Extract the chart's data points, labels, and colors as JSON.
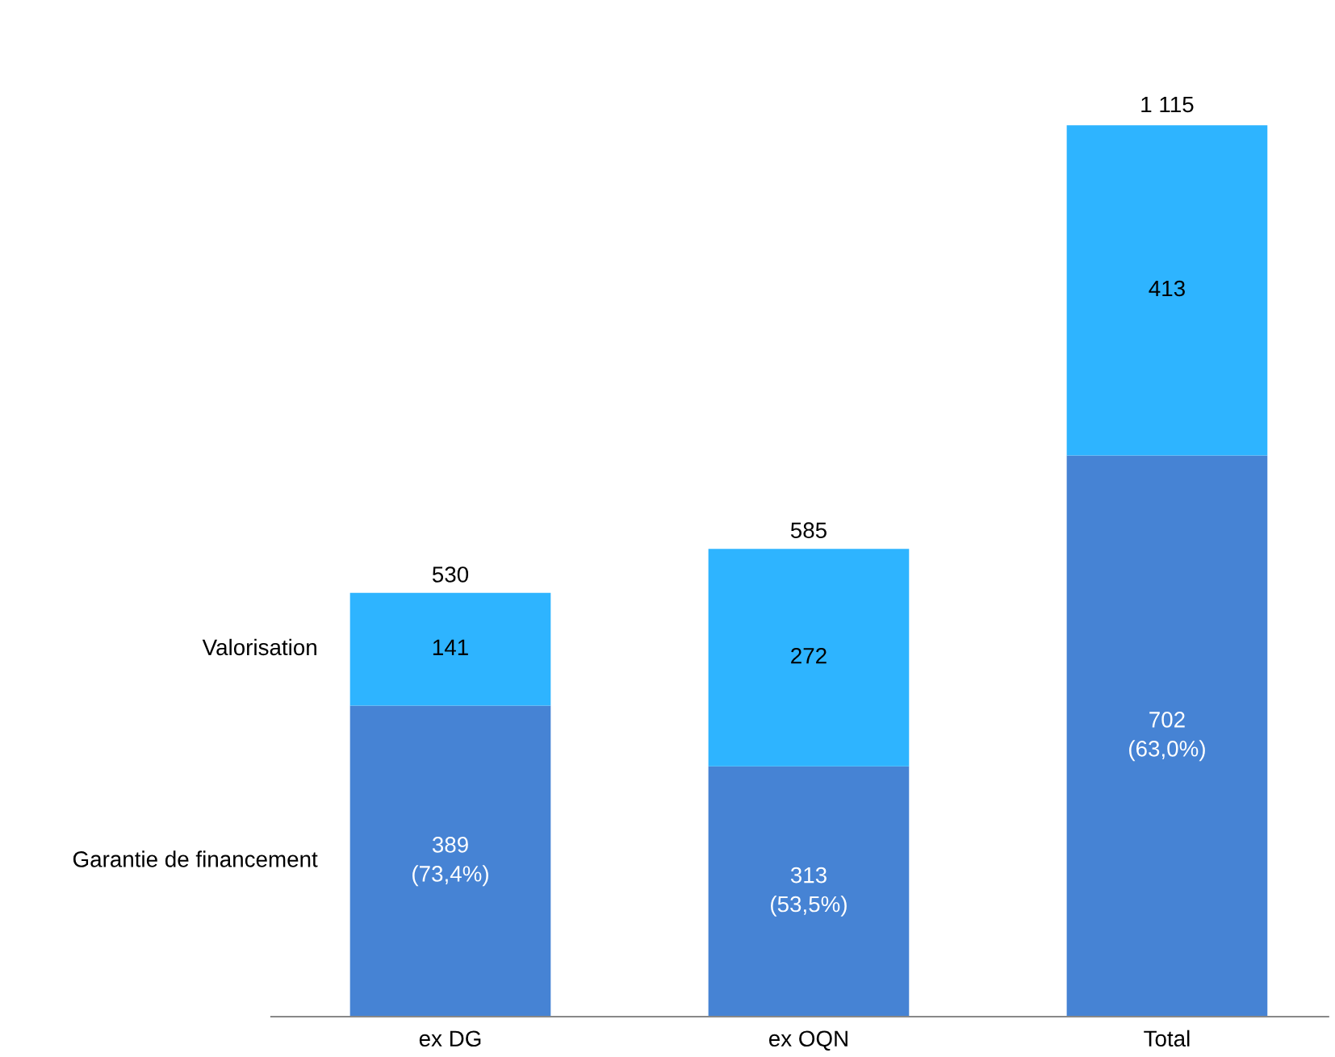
{
  "chart_data": {
    "type": "bar",
    "stacked": true,
    "categories": [
      "ex DG",
      "ex OQN",
      "Total"
    ],
    "series": [
      {
        "name": "Garantie de financement",
        "color": "#4683d4",
        "values": [
          389,
          313,
          702
        ],
        "value_labels": [
          "389\n(73,4%)",
          "313\n(53,5%)",
          "702\n(63,0%)"
        ]
      },
      {
        "name": "Valorisation",
        "color": "#2eb4ff",
        "values": [
          141,
          272,
          413
        ],
        "value_labels": [
          "141",
          "272",
          "413"
        ]
      }
    ],
    "totals": [
      "530",
      "585",
      "1 115"
    ],
    "legend": false,
    "grid": false,
    "tick_labels": "x"
  }
}
